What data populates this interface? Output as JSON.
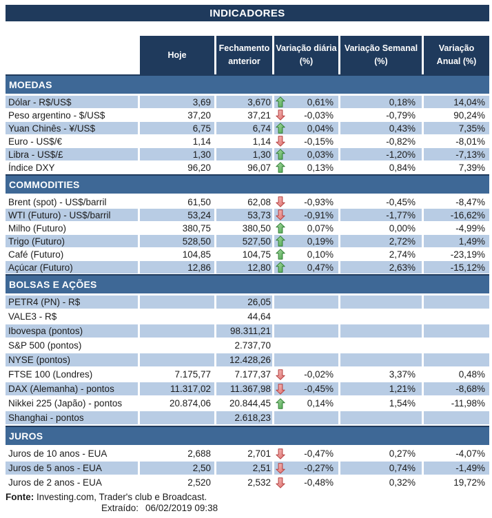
{
  "title": "INDICADORES",
  "columns": [
    {
      "line1": "Hoje",
      "line2": ""
    },
    {
      "line1": "Fechamento",
      "line2": "anterior"
    },
    {
      "line1": "Variação diária",
      "line2": "(%)"
    },
    {
      "line1": "Variação Semanal",
      "line2": "(%)"
    },
    {
      "line1": "Variação",
      "line2": "Anual (%)"
    }
  ],
  "sections": [
    {
      "id": "moedas",
      "name": "MOEDAS",
      "rows": [
        {
          "label": "Dólar - R$/US$",
          "hoje": "3,69",
          "fech": "3,670",
          "arrow": "up",
          "diaria": "0,61%",
          "semanal": "0,18%",
          "anual": "14,04%",
          "shaded": true
        },
        {
          "label": "Peso argentino - $/US$",
          "hoje": "37,20",
          "fech": "37,21",
          "arrow": "down",
          "diaria": "-0,03%",
          "semanal": "-0,79%",
          "anual": "90,24%",
          "shaded": false
        },
        {
          "label": "Yuan Chinês - ¥/US$",
          "hoje": "6,75",
          "fech": "6,74",
          "arrow": "up",
          "diaria": "0,04%",
          "semanal": "0,43%",
          "anual": "7,35%",
          "shaded": true
        },
        {
          "label": "Euro - US$/€",
          "hoje": "1,14",
          "fech": "1,14",
          "arrow": "down",
          "diaria": "-0,15%",
          "semanal": "-0,82%",
          "anual": "-8,01%",
          "shaded": false
        },
        {
          "label": "Libra - US$/£",
          "hoje": "1,30",
          "fech": "1,30",
          "arrow": "up",
          "diaria": "0,03%",
          "semanal": "-1,20%",
          "anual": "-7,13%",
          "shaded": true
        },
        {
          "label": "Índice DXY",
          "hoje": "96,20",
          "fech": "96,07",
          "arrow": "up",
          "diaria": "0,13%",
          "semanal": "0,84%",
          "anual": "7,39%",
          "shaded": false
        }
      ]
    },
    {
      "id": "commodities",
      "name": "COMMODITIES",
      "rows": [
        {
          "label": "Brent (spot) - US$/barril",
          "hoje": "61,50",
          "fech": "62,08",
          "arrow": "down",
          "diaria": "-0,93%",
          "semanal": "-0,45%",
          "anual": "-8,47%",
          "shaded": false
        },
        {
          "label": "WTI (Futuro) - US$/barril",
          "hoje": "53,24",
          "fech": "53,73",
          "arrow": "down",
          "diaria": "-0,91%",
          "semanal": "-1,77%",
          "anual": "-16,62%",
          "shaded": true
        },
        {
          "label": "Milho (Futuro)",
          "hoje": "380,75",
          "fech": "380,50",
          "arrow": "up",
          "diaria": "0,07%",
          "semanal": "0,00%",
          "anual": "-4,99%",
          "shaded": false
        },
        {
          "label": "Trigo (Futuro)",
          "hoje": "528,50",
          "fech": "527,50",
          "arrow": "up",
          "diaria": "0,19%",
          "semanal": "2,72%",
          "anual": "1,49%",
          "shaded": true
        },
        {
          "label": "Café (Futuro)",
          "hoje": "104,85",
          "fech": "104,75",
          "arrow": "up",
          "diaria": "0,10%",
          "semanal": "2,74%",
          "anual": "-23,19%",
          "shaded": false
        },
        {
          "label": "Açúcar (Futuro)",
          "hoje": "12,86",
          "fech": "12,80",
          "arrow": "up",
          "diaria": "0,47%",
          "semanal": "2,63%",
          "anual": "-15,12%",
          "shaded": true
        }
      ]
    },
    {
      "id": "bolsas-e-acoes",
      "name": "BOLSAS E AÇÕES",
      "rows": [
        {
          "label": "PETR4 (PN) - R$",
          "hoje": "",
          "fech": "26,05",
          "arrow": "",
          "diaria": "",
          "semanal": "",
          "anual": "",
          "shaded": true
        },
        {
          "label": "VALE3 - R$",
          "hoje": "",
          "fech": "44,64",
          "arrow": "",
          "diaria": "",
          "semanal": "",
          "anual": "",
          "shaded": false
        },
        {
          "label": "Ibovespa (pontos)",
          "hoje": "",
          "fech": "98.311,21",
          "arrow": "",
          "diaria": "",
          "semanal": "",
          "anual": "",
          "shaded": true
        },
        {
          "label": "S&P 500 (pontos)",
          "hoje": "",
          "fech": "2.737,70",
          "arrow": "",
          "diaria": "",
          "semanal": "",
          "anual": "",
          "shaded": false
        },
        {
          "label": "NYSE (pontos)",
          "hoje": "",
          "fech": "12.428,26",
          "arrow": "",
          "diaria": "",
          "semanal": "",
          "anual": "",
          "shaded": true
        },
        {
          "label": "FTSE 100 (Londres)",
          "hoje": "7.175,77",
          "fech": "7.177,37",
          "arrow": "down",
          "diaria": "-0,02%",
          "semanal": "3,37%",
          "anual": "0,48%",
          "shaded": false
        },
        {
          "label": "DAX (Alemanha) - pontos",
          "hoje": "11.317,02",
          "fech": "11.367,98",
          "arrow": "down",
          "diaria": "-0,45%",
          "semanal": "1,21%",
          "anual": "-8,68%",
          "shaded": true
        },
        {
          "label": "Nikkei 225 (Japão) - pontos",
          "hoje": "20.874,06",
          "fech": "20.844,45",
          "arrow": "up",
          "diaria": "0,14%",
          "semanal": "1,54%",
          "anual": "-11,98%",
          "shaded": false
        },
        {
          "label": "Shanghai - pontos",
          "hoje": "",
          "fech": "2.618,23",
          "arrow": "",
          "diaria": "",
          "semanal": "",
          "anual": "",
          "shaded": true
        }
      ]
    },
    {
      "id": "juros",
      "name": "JUROS",
      "rows": [
        {
          "label": "Juros de 10 anos - EUA",
          "hoje": "2,688",
          "fech": "2,701",
          "arrow": "down",
          "diaria": "-0,47%",
          "semanal": "0,27%",
          "anual": "-4,07%",
          "shaded": false
        },
        {
          "label": "Juros de 5 anos - EUA",
          "hoje": "2,50",
          "fech": "2,51",
          "arrow": "down",
          "diaria": "-0,27%",
          "semanal": "0,74%",
          "anual": "-1,49%",
          "shaded": true
        },
        {
          "label": "Juros de 2 anos - EUA",
          "hoje": "2,520",
          "fech": "2,532",
          "arrow": "down",
          "diaria": "-0,48%",
          "semanal": "0,32%",
          "anual": "19,72%",
          "shaded": false
        }
      ]
    }
  ],
  "footer": {
    "fonte_label": "Fonte:",
    "fonte_text": " Investing.com, Trader's club e Broadcast.",
    "extraido_label": "Extraído:",
    "extraido_value": "06/02/2019 09:38"
  },
  "colors": {
    "header-navy": "#1F3A5C",
    "band-blue": "#3E6896",
    "row-highlight": "#B8CCE4",
    "up-green": "#4CA64C",
    "up-stroke": "#2F7D33",
    "down-red": "#DB6B69",
    "down-stroke": "#B33E3E"
  }
}
